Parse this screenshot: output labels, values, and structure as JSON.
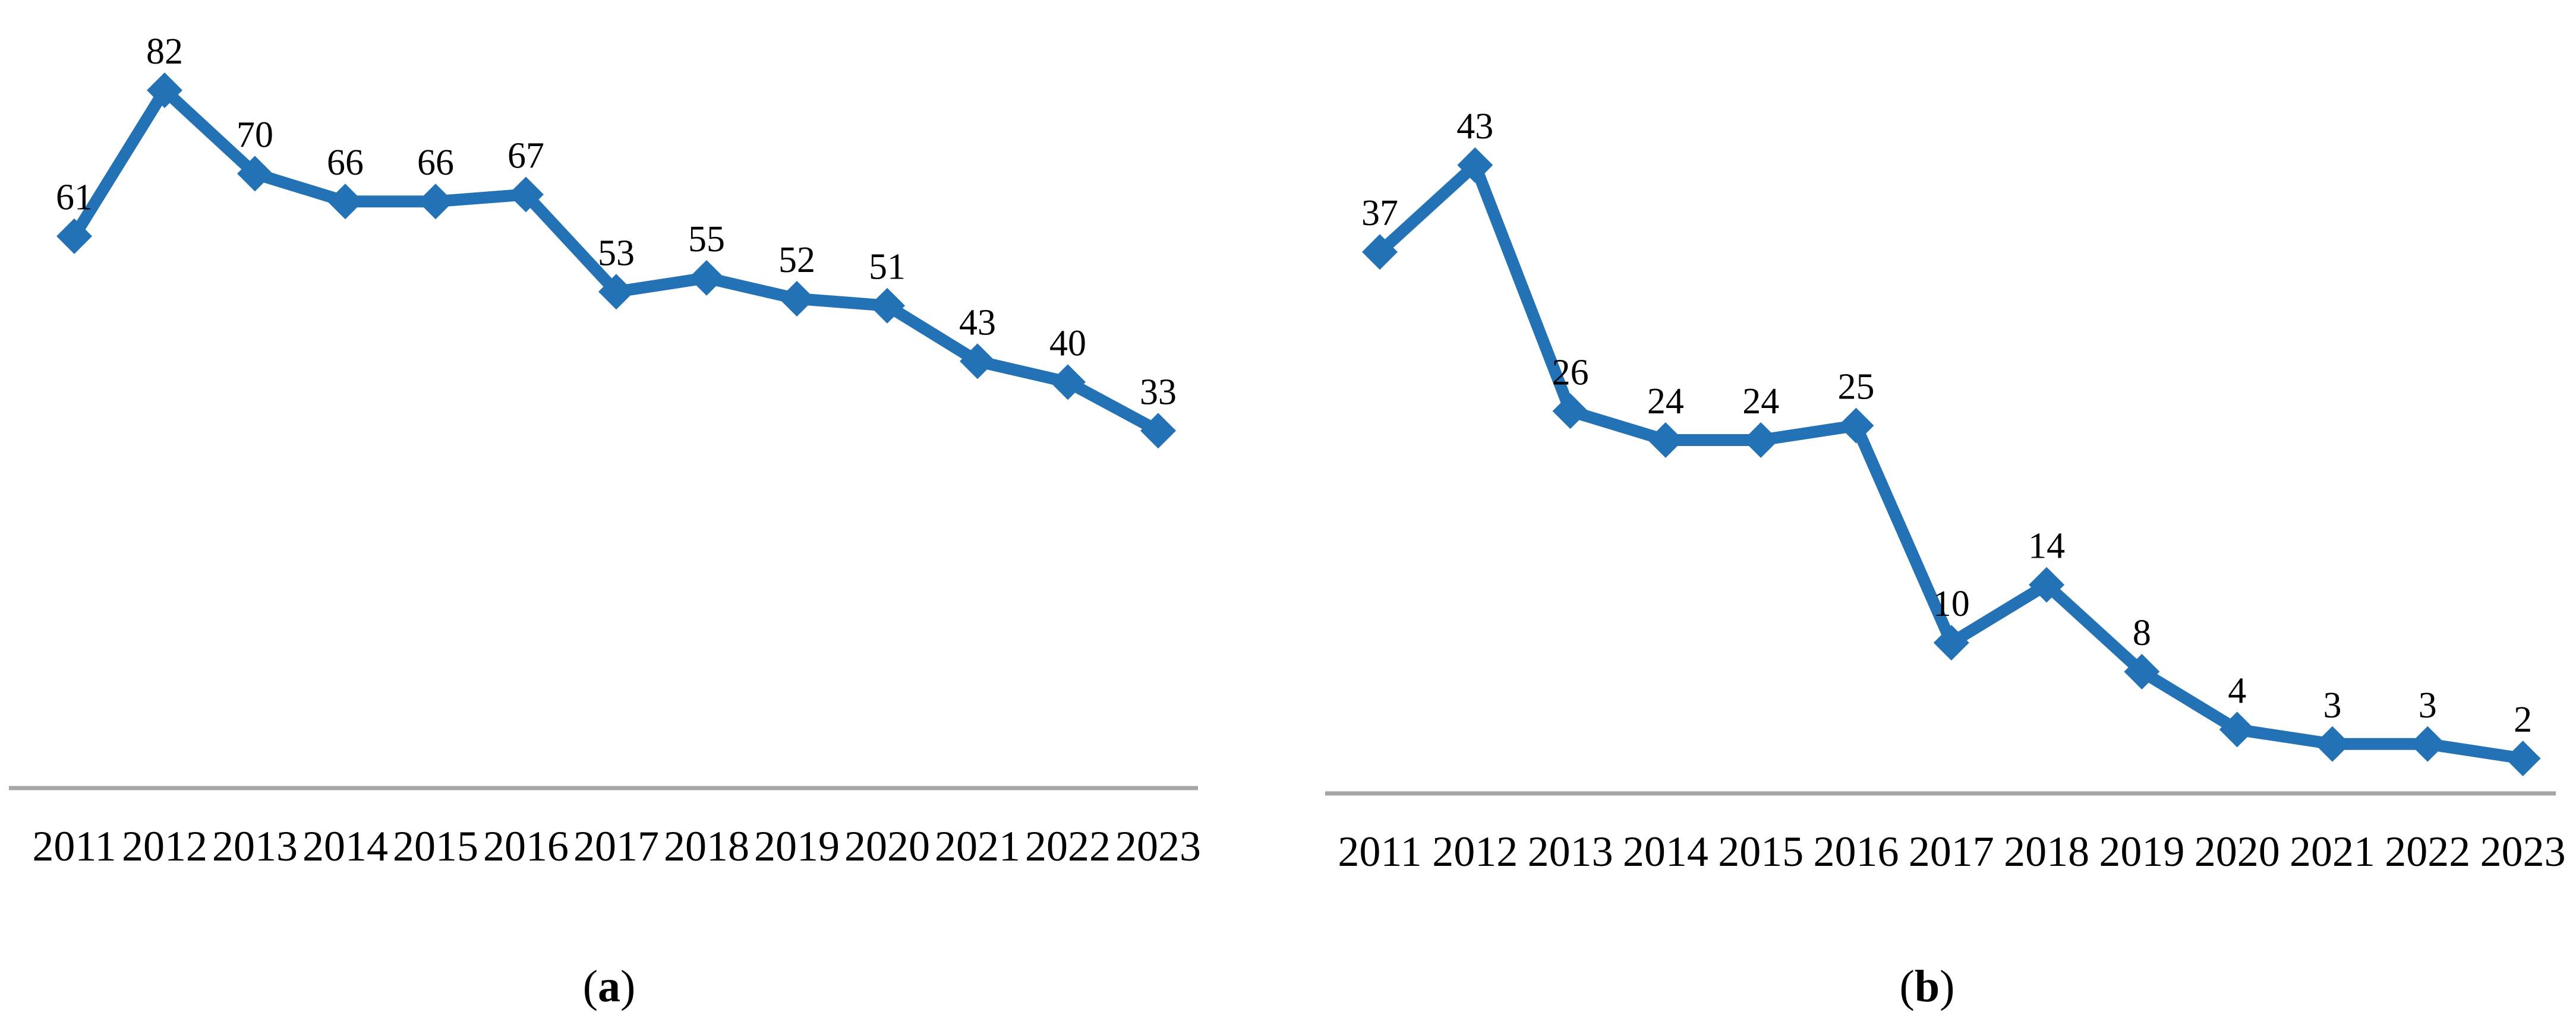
{
  "figure": {
    "background": "#FFFFFF",
    "series_color": "#2272B5",
    "axis_color": "#A6A6A6",
    "text_color": "#000000",
    "marker_shape": "diamond"
  },
  "captions": {
    "a": "(a)",
    "b": "(b)"
  },
  "chart_data": [
    {
      "id": "a",
      "type": "line",
      "title": "",
      "xlabel": "",
      "ylabel": "",
      "caption": "(a)",
      "legend": "none",
      "grid": false,
      "marker": "diamond",
      "line_color": "#2272B5",
      "categories": [
        "2011",
        "2012",
        "2013",
        "2014",
        "2015",
        "2016",
        "2017",
        "2018",
        "2019",
        "2020",
        "2021",
        "2022",
        "2023"
      ],
      "values": [
        61,
        82,
        70,
        66,
        66,
        67,
        53,
        55,
        52,
        51,
        43,
        40,
        33
      ],
      "data_labels_visible": true,
      "y_axis_visible": false,
      "x_axis_line_visible": true
    },
    {
      "id": "b",
      "type": "line",
      "title": "",
      "xlabel": "",
      "ylabel": "",
      "caption": "(b)",
      "legend": "none",
      "grid": false,
      "marker": "diamond",
      "line_color": "#2272B5",
      "categories": [
        "2011",
        "2012",
        "2013",
        "2014",
        "2015",
        "2016",
        "2017",
        "2018",
        "2019",
        "2020",
        "2021",
        "2022",
        "2023"
      ],
      "values": [
        37,
        43,
        26,
        24,
        24,
        25,
        10,
        14,
        8,
        4,
        3,
        3,
        2
      ],
      "data_labels_visible": true,
      "y_axis_visible": false,
      "x_axis_line_visible": true
    }
  ]
}
